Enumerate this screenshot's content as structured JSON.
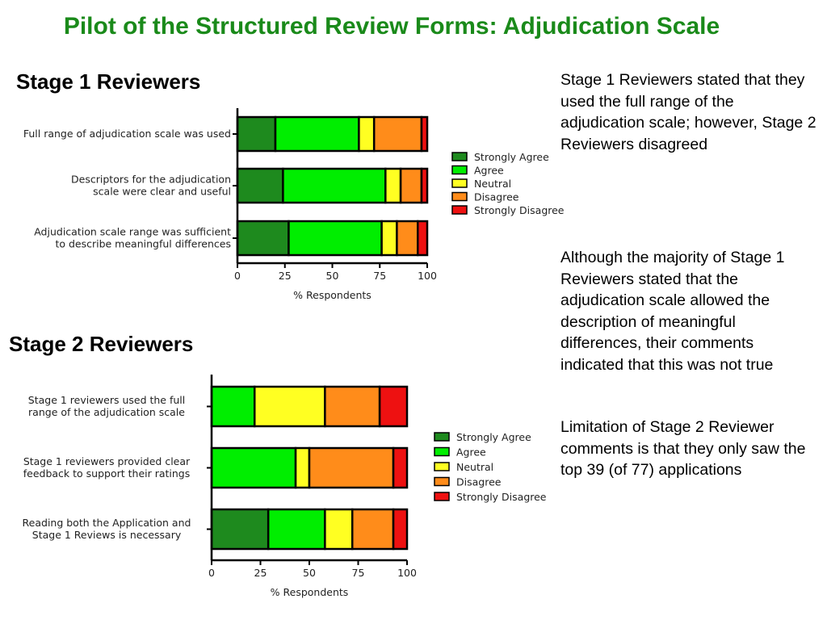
{
  "slide": {
    "title": "Pilot of the Structured Review Forms: Adjudication Scale"
  },
  "notes": [
    "Stage 1 Reviewers stated that they used the full range of the adjudication scale; however, Stage 2 Reviewers disagreed",
    "Although the majority of Stage 1 Reviewers stated that the adjudication scale allowed the description of meaningful differences, their comments indicated that this was not true",
    "Limitation of Stage 2 Reviewer comments is that they only saw the top 39 (of 77) applications"
  ],
  "colors": {
    "Strongly Agree": "#1e8a1e",
    "Agree": "#00ee00",
    "Neutral": "#ffff22",
    "Disagree": "#ff8c1a",
    "Strongly Disagree": "#ee1111"
  },
  "chart_data": [
    {
      "type": "bar",
      "orientation": "horizontal",
      "stacked": true,
      "heading": "Stage 1 Reviewers",
      "title": "",
      "xlabel": "% Respondents",
      "ylabel": "",
      "xlim": [
        0,
        100
      ],
      "xticks": [
        0,
        25,
        50,
        75,
        100
      ],
      "legend_position": "right",
      "categories": [
        [
          "Full range of adjudication scale was used"
        ],
        [
          "Descriptors for the adjudication",
          "scale were clear and useful"
        ],
        [
          "Adjudication scale range was sufficient",
          "to describe meaningful differences"
        ]
      ],
      "series": [
        {
          "name": "Strongly Agree",
          "values": [
            20,
            24,
            27
          ]
        },
        {
          "name": "Agree",
          "values": [
            44,
            54,
            49
          ]
        },
        {
          "name": "Neutral",
          "values": [
            8,
            8,
            8
          ]
        },
        {
          "name": "Disagree",
          "values": [
            25,
            11,
            11
          ]
        },
        {
          "name": "Strongly Disagree",
          "values": [
            3,
            3,
            5
          ]
        }
      ]
    },
    {
      "type": "bar",
      "orientation": "horizontal",
      "stacked": true,
      "heading": "Stage 2 Reviewers",
      "title": "",
      "xlabel": "% Respondents",
      "ylabel": "",
      "xlim": [
        0,
        100
      ],
      "xticks": [
        0,
        25,
        50,
        75,
        100
      ],
      "legend_position": "right",
      "categories": [
        [
          "Stage 1 reviewers used the full",
          "range of the adjudication scale"
        ],
        [
          "Stage 1 reviewers provided clear",
          "feedback to support their ratings"
        ],
        [
          "Reading both the Application and",
          "Stage 1 Reviews is necessary"
        ]
      ],
      "series": [
        {
          "name": "Strongly Agree",
          "values": [
            0,
            0,
            29
          ]
        },
        {
          "name": "Agree",
          "values": [
            22,
            43,
            29
          ]
        },
        {
          "name": "Neutral",
          "values": [
            36,
            7,
            14
          ]
        },
        {
          "name": "Disagree",
          "values": [
            28,
            43,
            21
          ]
        },
        {
          "name": "Strongly Disagree",
          "values": [
            14,
            7,
            7
          ]
        }
      ]
    }
  ]
}
